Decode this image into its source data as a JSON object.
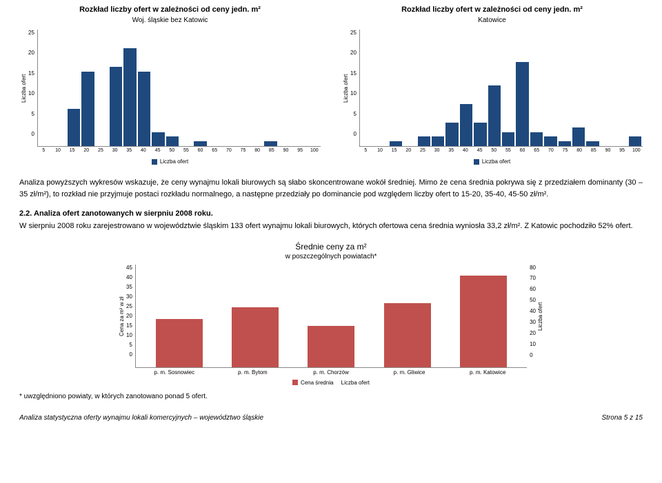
{
  "chartA": {
    "title": "Rozkład liczby ofert w zależności od ceny jedn. m²",
    "subtitle": "Woj. śląskie bez Katowic",
    "ylabel": "Liczba ofert",
    "ymax": 25,
    "yticks": [
      25,
      20,
      15,
      10,
      5,
      0
    ],
    "xvals": [
      "5",
      "10",
      "15",
      "20",
      "25",
      "30",
      "35",
      "40",
      "45",
      "50",
      "55",
      "60",
      "65",
      "70",
      "75",
      "80",
      "85",
      "90",
      "95",
      "100"
    ],
    "values": [
      0,
      0,
      8,
      16,
      0,
      17,
      21,
      16,
      3,
      2,
      0,
      1,
      0,
      0,
      0,
      0,
      1,
      0,
      0,
      0
    ],
    "bar_color": "#1f497d",
    "legend": "Liczba ofert"
  },
  "chartB": {
    "title": "Rozkład liczby ofert w zależności od ceny jedn. m²",
    "subtitle": "Katowice",
    "ylabel": "Liczba ofert",
    "ymax": 25,
    "yticks": [
      25,
      20,
      15,
      10,
      5,
      0
    ],
    "xvals": [
      "5",
      "10",
      "15",
      "20",
      "25",
      "30",
      "35",
      "40",
      "45",
      "50",
      "55",
      "60",
      "65",
      "70",
      "75",
      "80",
      "85",
      "90",
      "95",
      "100"
    ],
    "values": [
      0,
      0,
      1,
      0,
      2,
      2,
      5,
      9,
      5,
      13,
      3,
      18,
      3,
      2,
      1,
      4,
      1,
      0,
      0,
      2
    ],
    "bar_color": "#1f497d",
    "legend": "Liczba ofert"
  },
  "para1": "Analiza powyższych wykresów wskazuje, że ceny wynajmu lokali biurowych są słabo skoncentrowane wokół średniej. Mimo że cena średnia pokrywa się z przedziałem dominanty (30 – 35 zł/m²), to rozkład nie przyjmuje postaci rozkładu normalnego, a następne przedziały po dominancie pod względem liczby ofert to 15-20, 35-40, 45-50 zł/m².",
  "sec22_title": "2.2. Analiza ofert zanotowanych w sierpniu 2008 roku.",
  "para2": "W sierpniu 2008 roku zarejestrowano w województwie śląskim 133 ofert wynajmu lokali biurowych, których ofertowa cena średnia wyniosła 33,2 zł/m². Z Katowic pochodziło 52% ofert.",
  "midChart": {
    "title": "Średnie ceny za m²",
    "subtitle": "w poszczególnych powiatach*",
    "y1label": "Cena za m² w zł",
    "y2label": "Liczba ofert",
    "y1max": 45,
    "y1ticks": [
      45,
      40,
      35,
      30,
      25,
      20,
      15,
      10,
      5,
      0
    ],
    "y2ticks": [
      0,
      10,
      20,
      30,
      40,
      50,
      60,
      70,
      80
    ],
    "categories": [
      "p. m. Sosnowiec",
      "p. m. Bytom",
      "p. m. Chorzów",
      "p. m. Gliwice",
      "p. m. Katowice"
    ],
    "values": [
      21,
      26,
      18,
      28,
      40
    ],
    "bar_color": "#c0504d",
    "legend1": "Cena średnia",
    "legend2": "Liczba ofert"
  },
  "footnote": "* uwzględniono powiaty, w których zanotowano ponad 5 ofert.",
  "footer_left": "Analiza statystyczna oferty wynajmu lokali komercyjnych – województwo śląskie",
  "footer_right": "Strona 5 z 15"
}
